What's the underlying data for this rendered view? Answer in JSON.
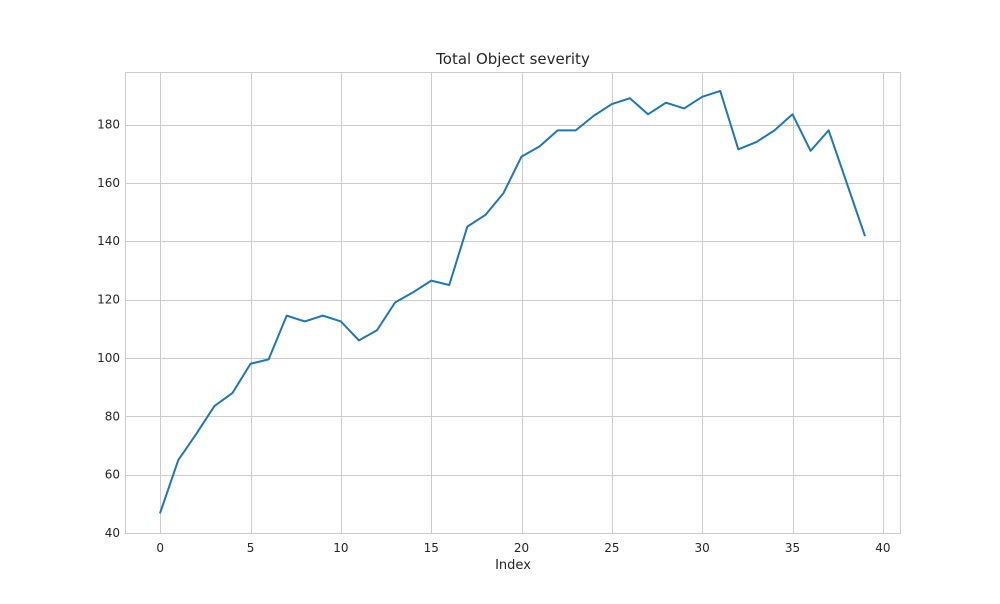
{
  "chart_data": {
    "type": "line",
    "title": "Total Object severity",
    "xlabel": "Index",
    "ylabel": "",
    "xlim": [
      -1.95,
      40.95
    ],
    "ylim": [
      40,
      198
    ],
    "xticks": [
      0,
      5,
      10,
      15,
      20,
      25,
      30,
      35,
      40
    ],
    "yticks": [
      40,
      60,
      80,
      100,
      120,
      140,
      160,
      180
    ],
    "grid": true,
    "legend": "none",
    "series": [
      {
        "color": "#1f77b4",
        "x": [
          0,
          1,
          2,
          3,
          4,
          5,
          6,
          7,
          8,
          9,
          10,
          11,
          12,
          13,
          14,
          15,
          16,
          17,
          18,
          19,
          20,
          21,
          22,
          23,
          24,
          25,
          26,
          27,
          28,
          29,
          30,
          31,
          32,
          33,
          34,
          35,
          36,
          37,
          38,
          39
        ],
        "values": [
          47,
          65,
          74,
          83.5,
          88,
          98,
          99.5,
          114.5,
          112.5,
          114.5,
          112.5,
          106,
          109.5,
          119,
          122.5,
          126.5,
          125,
          145,
          149,
          156.5,
          169,
          172.5,
          178,
          178,
          183,
          187,
          189,
          183.5,
          187.5,
          185.5,
          189.5,
          191.5,
          171.5,
          174,
          178,
          183.5,
          171,
          178,
          160,
          142
        ]
      }
    ]
  }
}
